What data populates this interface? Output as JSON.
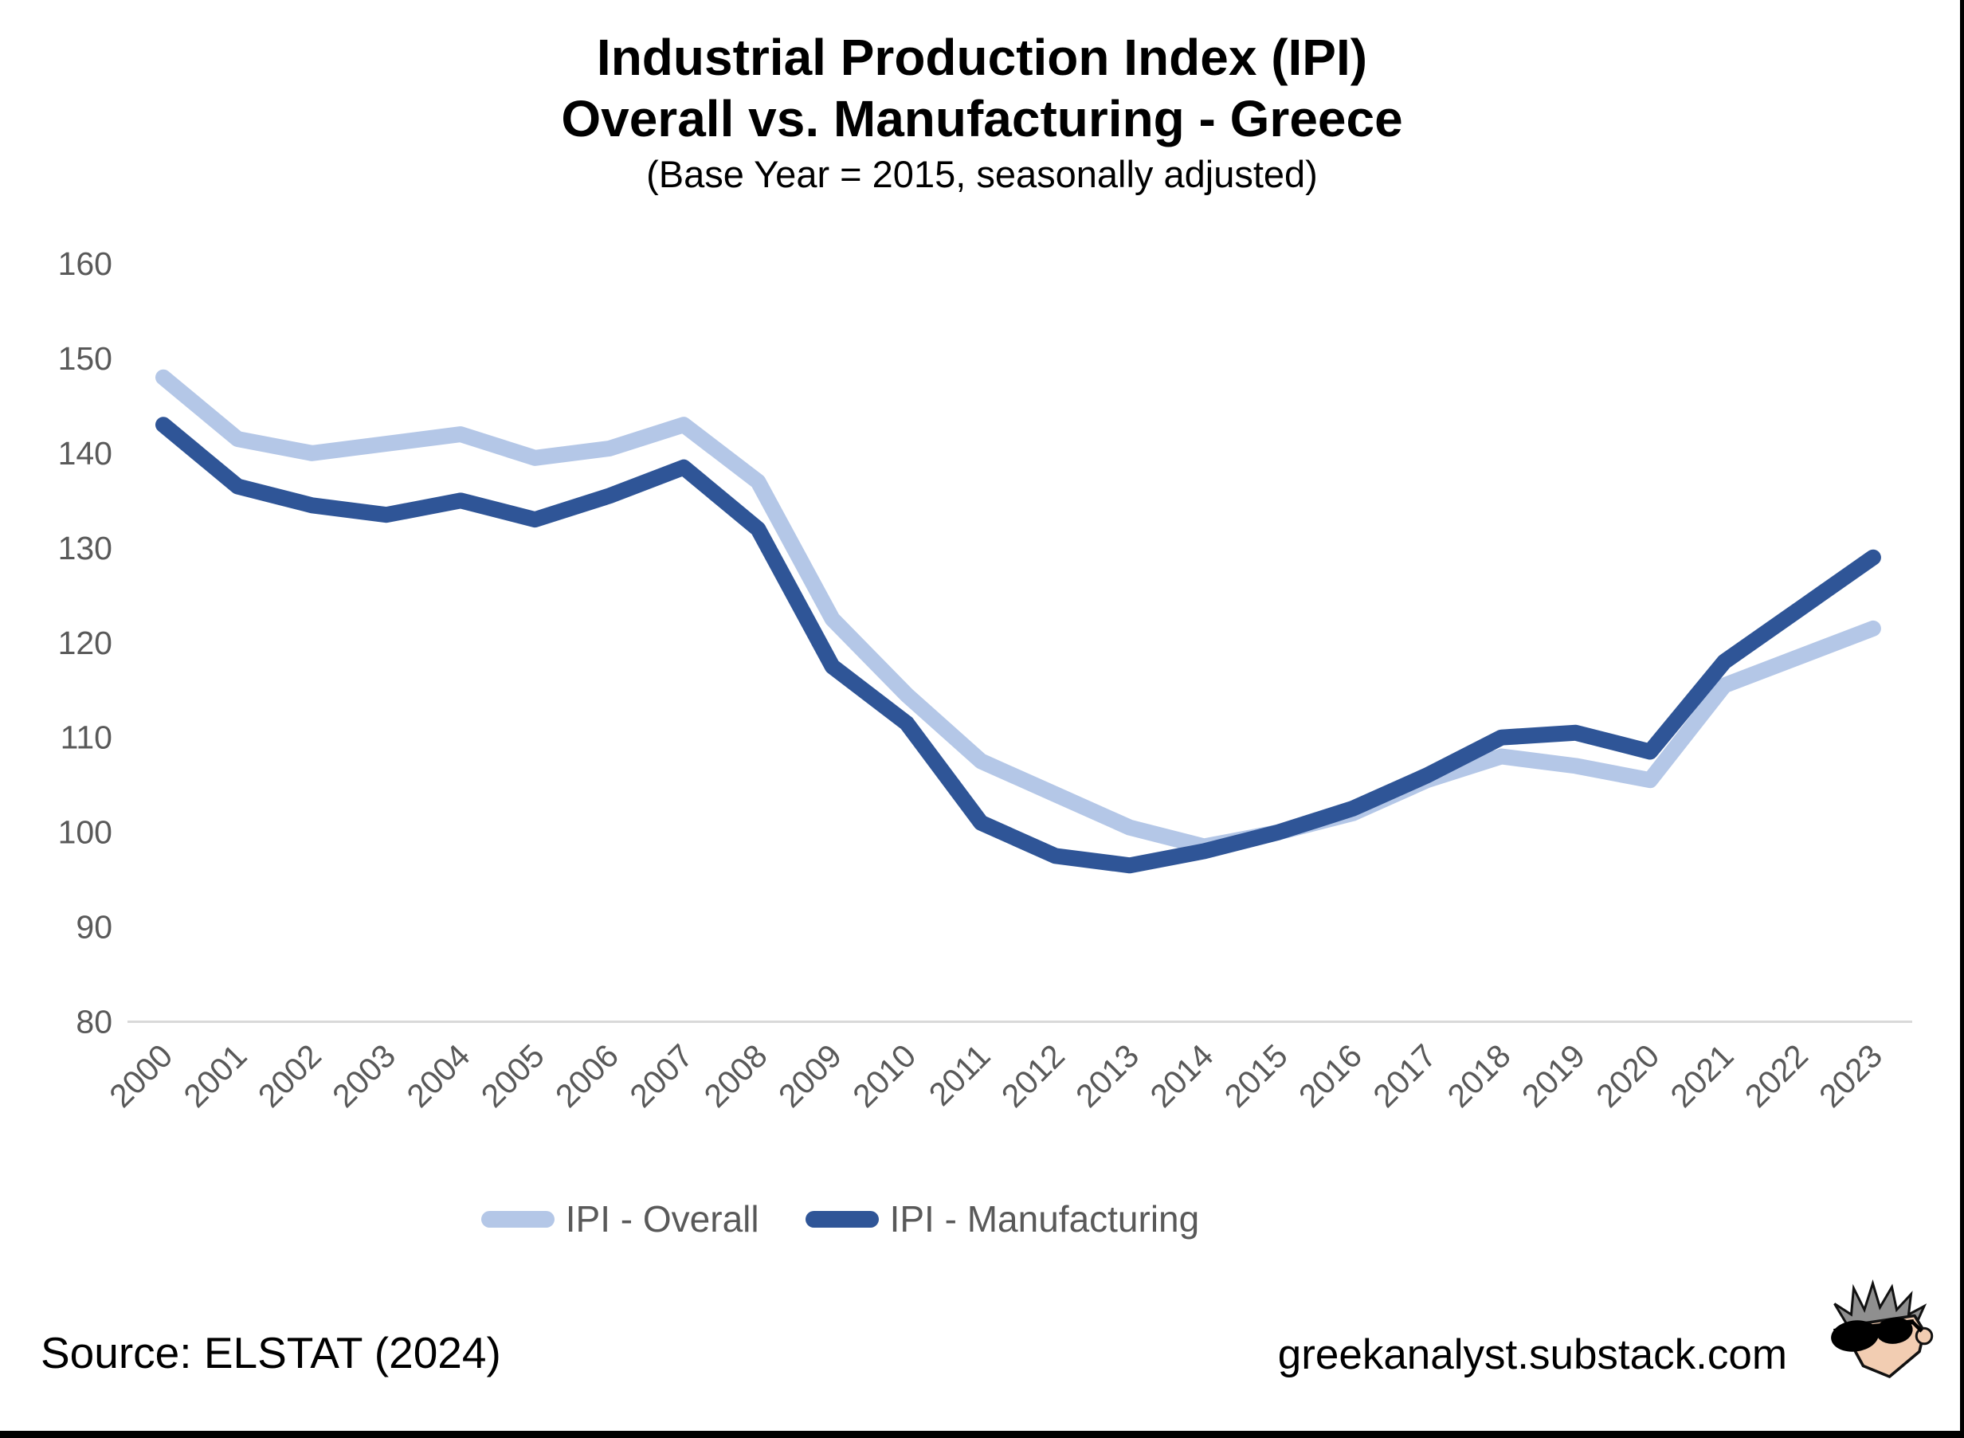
{
  "header": {
    "title_line1": "Industrial Production Index (IPI)",
    "title_line2": "Overall vs. Manufacturing - Greece",
    "subtitle": "(Base Year = 2015, seasonally adjusted)"
  },
  "colors": {
    "overall_line": "#B4C7E7",
    "manufacturing_line": "#2F5597",
    "axis_text": "#595959",
    "axis_line": "#D9D9D9",
    "title_text": "#000000",
    "edge_bars": "#000000"
  },
  "chart_data": {
    "type": "line",
    "title": "Industrial Production Index (IPI) Overall vs. Manufacturing - Greece",
    "subtitle": "(Base Year = 2015, seasonally adjusted)",
    "x": [
      2000,
      2001,
      2002,
      2003,
      2004,
      2005,
      2006,
      2007,
      2008,
      2009,
      2010,
      2011,
      2012,
      2013,
      2014,
      2015,
      2016,
      2017,
      2018,
      2019,
      2020,
      2021,
      2022,
      2023
    ],
    "series": [
      {
        "name": "IPI - Overall",
        "color": "#B4C7E7",
        "values": [
          148,
          141.5,
          140,
          141,
          142,
          139.5,
          140.5,
          143,
          137,
          122.5,
          114.5,
          107.5,
          104,
          100.5,
          98.5,
          100,
          102,
          105.5,
          108,
          107,
          105.5,
          115.5,
          118.5,
          121.5
        ]
      },
      {
        "name": "IPI - Manufacturing",
        "color": "#2F5597",
        "values": [
          143,
          136.5,
          134.5,
          133.5,
          135,
          133,
          135.5,
          138.5,
          132,
          117.5,
          111.5,
          101,
          97.5,
          96.5,
          98,
          100,
          102.5,
          106,
          110,
          110.5,
          108.5,
          118,
          123.5,
          129
        ]
      }
    ],
    "ylim": [
      80,
      160
    ],
    "y_ticks": [
      160,
      150,
      140,
      130,
      120,
      110,
      100,
      90,
      80
    ],
    "grid": false,
    "legend_position": "bottom",
    "xlabel": "",
    "ylabel": ""
  },
  "footer": {
    "source": "Source: ELSTAT (2024)",
    "site": "greekanalyst.substack.com"
  }
}
